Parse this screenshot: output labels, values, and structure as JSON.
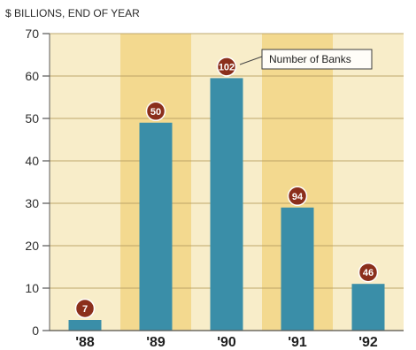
{
  "chart_data": {
    "type": "bar",
    "unit_label": "$ BILLIONS, END OF YEAR",
    "categories": [
      "'88",
      "'89",
      "'90",
      "'91",
      "'92"
    ],
    "series": [
      {
        "values": [
          2.5,
          49,
          59.5,
          29,
          11
        ],
        "bank_counts": [
          "7",
          "50",
          "102",
          "94",
          "46"
        ]
      }
    ],
    "ylim": [
      0,
      70
    ],
    "yticks": [
      "0",
      "10",
      "20",
      "30",
      "40",
      "50",
      "60",
      "70"
    ],
    "grid": true,
    "legend_label": "Number of Banks",
    "colors": {
      "bar": "#3a8ea8",
      "badge": "#8b2f1c",
      "background_light": "#f8edc9",
      "background_dark": "#f3d98f",
      "grid": "#b89f61"
    }
  }
}
